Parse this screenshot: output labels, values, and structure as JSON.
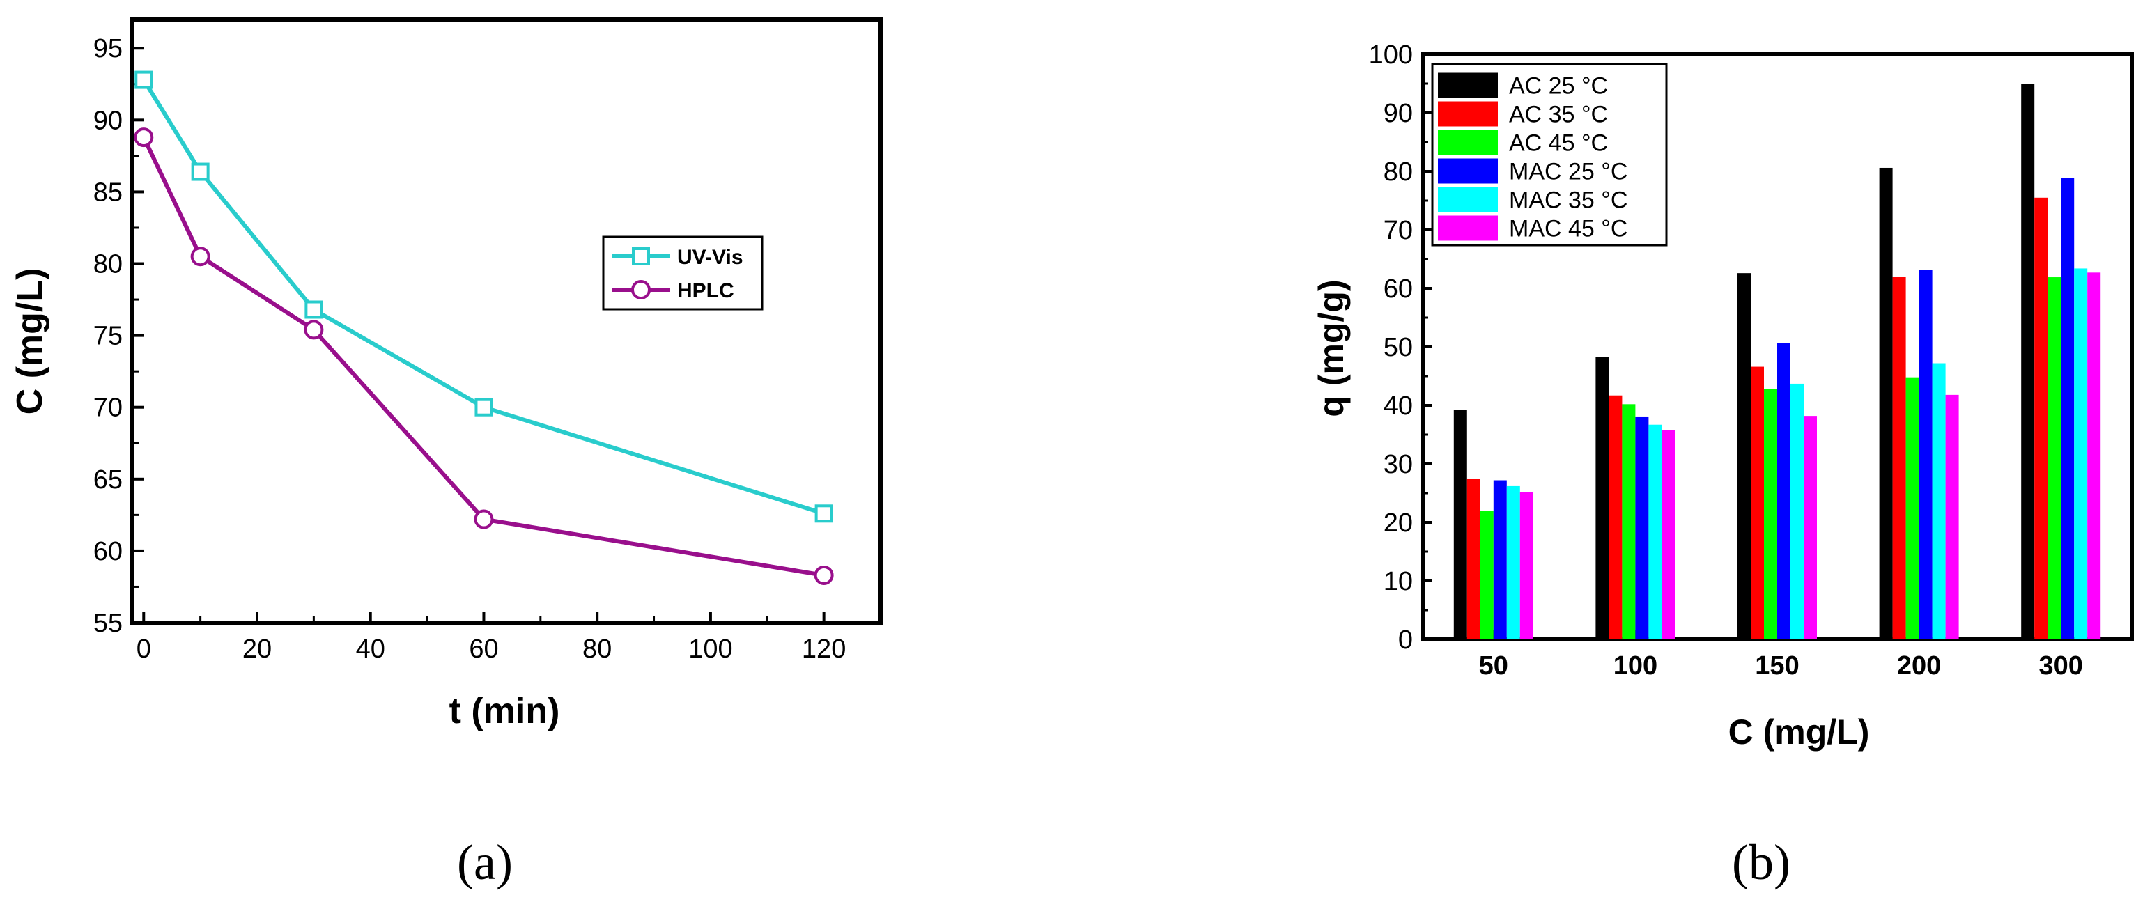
{
  "chart_data": [
    {
      "type": "line",
      "panel_label": "(a)",
      "xlabel": "t (min)",
      "ylabel": "C (mg/L)",
      "xlim": [
        -2,
        130
      ],
      "ylim": [
        55,
        97
      ],
      "xticks": [
        0,
        20,
        40,
        60,
        80,
        100,
        120
      ],
      "yticks": [
        55,
        60,
        65,
        70,
        75,
        80,
        85,
        90,
        95
      ],
      "grid": false,
      "legend_position": "right",
      "series": [
        {
          "name": "UV-Vis",
          "marker": "square",
          "color": "#29cccc",
          "x": [
            0,
            10,
            30,
            60,
            120
          ],
          "y": [
            92.8,
            86.4,
            76.8,
            70.0,
            62.6
          ]
        },
        {
          "name": "HPLC",
          "marker": "circle",
          "color": "#990f8c",
          "x": [
            0,
            10,
            30,
            60,
            120
          ],
          "y": [
            88.8,
            80.5,
            75.4,
            62.2,
            58.3
          ]
        }
      ]
    },
    {
      "type": "bar",
      "panel_label": "(b)",
      "xlabel": "C (mg/L)",
      "ylabel": "q (mg/g)",
      "ylim": [
        0,
        100
      ],
      "yticks": [
        0,
        10,
        20,
        30,
        40,
        50,
        60,
        70,
        80,
        90,
        100
      ],
      "grid": false,
      "legend_position": "top-left",
      "categories": [
        "50",
        "100",
        "150",
        "200",
        "300"
      ],
      "series": [
        {
          "name": "AC 25 °C",
          "color": "#000000",
          "values": [
            39.2,
            48.3,
            62.6,
            80.6,
            95.0
          ]
        },
        {
          "name": "AC 35 °C",
          "color": "#ff0000",
          "values": [
            27.5,
            41.7,
            46.6,
            62.0,
            75.5
          ]
        },
        {
          "name": "AC 45 °C",
          "color": "#00ff00",
          "values": [
            22.0,
            40.2,
            42.8,
            44.8,
            61.9
          ]
        },
        {
          "name": "MAC 25 °C",
          "color": "#0000ff",
          "values": [
            27.2,
            38.1,
            50.6,
            63.2,
            78.9
          ]
        },
        {
          "name": "MAC 35 °C",
          "color": "#00ffff",
          "values": [
            26.2,
            36.7,
            43.7,
            47.2,
            63.4
          ]
        },
        {
          "name": "MAC 45 °C",
          "color": "#ff00ff",
          "values": [
            25.2,
            35.8,
            38.2,
            41.8,
            62.7
          ]
        }
      ]
    }
  ]
}
